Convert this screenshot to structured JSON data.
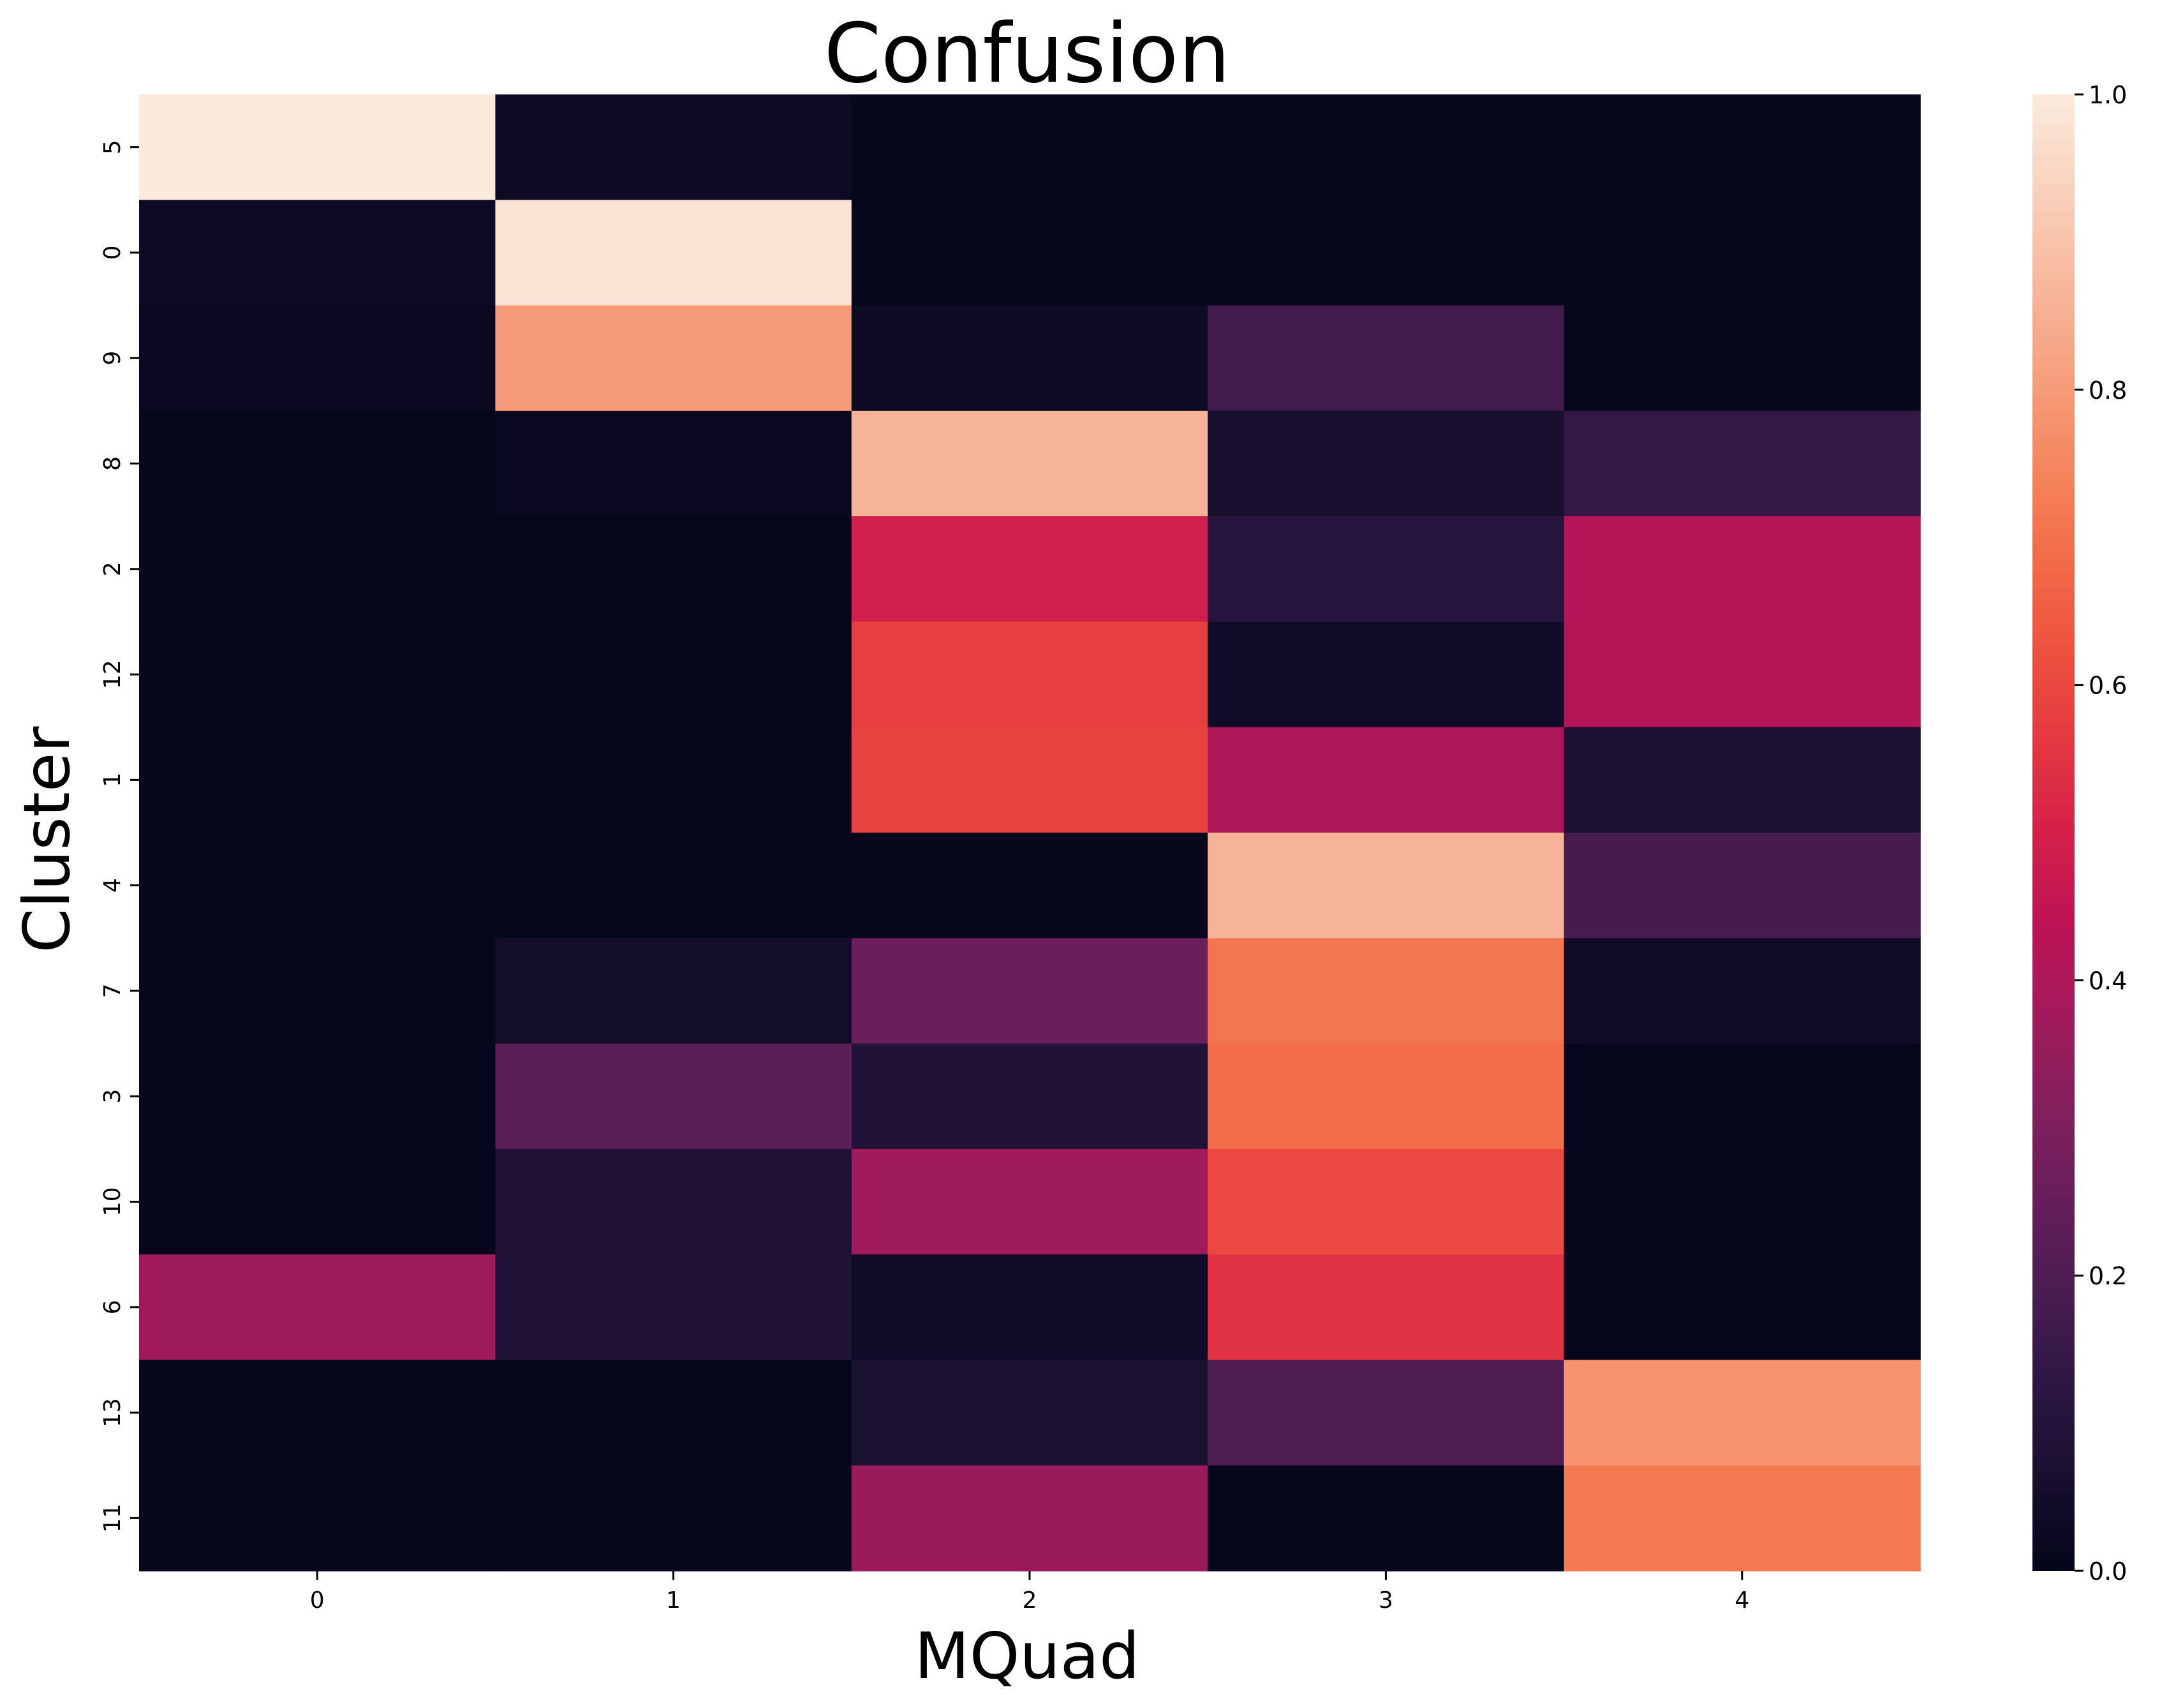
{
  "chart_data": {
    "type": "heatmap",
    "title": "Confusion",
    "xlabel": "MQuad",
    "ylabel": "Cluster",
    "x_categories": [
      "0",
      "1",
      "2",
      "3",
      "4"
    ],
    "y_categories": [
      "5",
      "0",
      "9",
      "8",
      "2",
      "12",
      "1",
      "4",
      "7",
      "3",
      "10",
      "6",
      "13",
      "11"
    ],
    "values": [
      [
        1.0,
        0.03,
        0.01,
        0.01,
        0.01
      ],
      [
        0.03,
        0.98,
        0.01,
        0.01,
        0.01
      ],
      [
        0.02,
        0.8,
        0.03,
        0.17,
        0.01
      ],
      [
        0.01,
        0.02,
        0.86,
        0.06,
        0.14
      ],
      [
        0.01,
        0.01,
        0.49,
        0.11,
        0.42
      ],
      [
        0.01,
        0.01,
        0.58,
        0.04,
        0.42
      ],
      [
        0.01,
        0.01,
        0.59,
        0.4,
        0.07
      ],
      [
        0.01,
        0.01,
        0.01,
        0.86,
        0.18
      ],
      [
        0.01,
        0.05,
        0.26,
        0.71,
        0.04
      ],
      [
        0.01,
        0.23,
        0.09,
        0.69,
        0.01
      ],
      [
        0.01,
        0.08,
        0.37,
        0.6,
        0.01
      ],
      [
        0.37,
        0.09,
        0.04,
        0.55,
        0.01
      ],
      [
        0.01,
        0.01,
        0.07,
        0.2,
        0.78
      ],
      [
        0.01,
        0.01,
        0.36,
        0.01,
        0.72
      ]
    ],
    "colorbar": {
      "range": [
        0.0,
        1.0
      ],
      "ticks": [
        "0.0",
        "0.2",
        "0.4",
        "0.6",
        "0.8",
        "1.0"
      ],
      "colormap": [
        "#03051a",
        "#180f2e",
        "#2c1742",
        "#491d50",
        "#651e5a",
        "#82205c",
        "#a11a5b",
        "#bd1355",
        "#d52049",
        "#e43841",
        "#ee523f",
        "#f26c49",
        "#f5875f",
        "#f6a07f",
        "#f7b99e",
        "#f9d2bd",
        "#faebdd"
      ]
    }
  }
}
